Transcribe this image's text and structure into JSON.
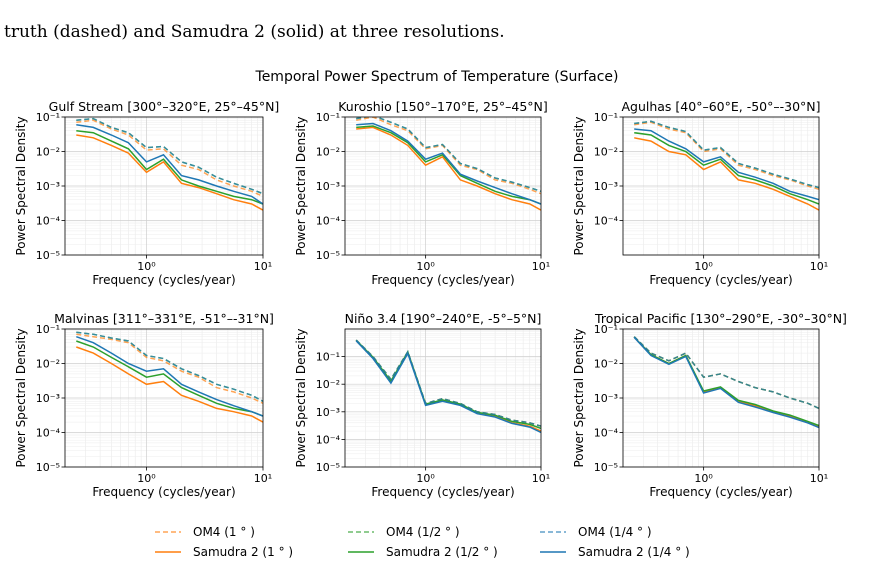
{
  "caption_text": "truth (dashed) and Samudra 2 (solid) at three resolutions.",
  "suptitle": "Temporal Power Spectrum of Temperature (Surface)",
  "xlabel": "Frequency (cycles/year)",
  "ylabel": "Power Spectral Density",
  "colors": {
    "1deg": "#ff7f0e",
    "half": "#2ca02c",
    "quarter": "#1f77b4"
  },
  "legend": [
    {
      "key": "om4_1",
      "label": "OM4 (1$^\\circ$)",
      "text": "OM4 (1 ° )",
      "color": "#ff7f0e",
      "dash": true
    },
    {
      "key": "sam_1",
      "text": "Samudra 2 (1 ° )",
      "color": "#ff7f0e",
      "dash": false
    },
    {
      "key": "om4_half",
      "text": "OM4 (1/2 ° )",
      "color": "#2ca02c",
      "dash": true
    },
    {
      "key": "sam_half",
      "text": "Samudra 2 (1/2 ° )",
      "color": "#2ca02c",
      "dash": false
    },
    {
      "key": "om4_quarter",
      "text": "OM4 (1/4 ° )",
      "color": "#1f77b4",
      "dash": true
    },
    {
      "key": "sam_quarter",
      "text": "Samudra 2 (1/4 ° )",
      "color": "#1f77b4",
      "dash": false
    }
  ],
  "chart_data": [
    {
      "type": "line",
      "title": "Gulf Stream [300°–320°E, 25°–45°N]",
      "xscale": "log",
      "yscale": "log",
      "xlim": [
        0.2,
        10
      ],
      "ylim": [
        1e-05,
        0.1
      ],
      "y_ticks": [
        "10⁻⁵",
        "10⁻⁴",
        "10⁻³",
        "10⁻²",
        "10⁻¹"
      ],
      "x_ticks": [
        "10⁰",
        "10¹"
      ],
      "x": [
        0.25,
        0.35,
        0.5,
        0.7,
        1.0,
        1.4,
        2.0,
        2.8,
        4.0,
        5.6,
        8.0,
        10.0
      ],
      "series": [
        {
          "name": "OM4 (1°)",
          "values": [
            0.07,
            0.08,
            0.045,
            0.03,
            0.011,
            0.012,
            0.004,
            0.003,
            0.0015,
            0.001,
            0.0007,
            0.0005
          ]
        },
        {
          "name": "Samudra 2 (1°)",
          "values": [
            0.03,
            0.025,
            0.015,
            0.009,
            0.0025,
            0.005,
            0.0012,
            0.0009,
            0.0006,
            0.0004,
            0.0003,
            0.0002
          ]
        },
        {
          "name": "OM4 (1/2°)",
          "values": [
            0.08,
            0.09,
            0.05,
            0.035,
            0.013,
            0.014,
            0.005,
            0.0035,
            0.0018,
            0.0012,
            0.0008,
            0.0006
          ]
        },
        {
          "name": "Samudra 2 (1/2°)",
          "values": [
            0.04,
            0.035,
            0.02,
            0.012,
            0.003,
            0.006,
            0.0015,
            0.001,
            0.0007,
            0.0005,
            0.0004,
            0.0003
          ]
        },
        {
          "name": "OM4 (1/4°)",
          "values": [
            0.08,
            0.09,
            0.05,
            0.035,
            0.013,
            0.014,
            0.005,
            0.0035,
            0.0018,
            0.0012,
            0.0008,
            0.0006
          ]
        },
        {
          "name": "Samudra 2 (1/4°)",
          "values": [
            0.06,
            0.05,
            0.03,
            0.018,
            0.005,
            0.008,
            0.002,
            0.0015,
            0.001,
            0.0007,
            0.0005,
            0.0003
          ]
        }
      ]
    },
    {
      "type": "line",
      "title": "Kuroshio [150°–170°E, 25°–45°N]",
      "xscale": "log",
      "yscale": "log",
      "xlim": [
        0.2,
        10
      ],
      "ylim": [
        1e-05,
        0.1
      ],
      "y_ticks": [
        "10⁻⁵",
        "10⁻⁴",
        "10⁻³",
        "10⁻²",
        "10⁻¹"
      ],
      "x_ticks": [
        "10⁰",
        "10¹"
      ],
      "x": [
        0.25,
        0.35,
        0.5,
        0.7,
        1.0,
        1.4,
        2.0,
        2.8,
        4.0,
        5.6,
        8.0,
        10.0
      ],
      "series": [
        {
          "name": "OM4 (1°)",
          "values": [
            0.08,
            0.1,
            0.06,
            0.04,
            0.012,
            0.015,
            0.004,
            0.003,
            0.0015,
            0.0012,
            0.0008,
            0.0006
          ]
        },
        {
          "name": "Samudra 2 (1°)",
          "values": [
            0.045,
            0.05,
            0.03,
            0.015,
            0.004,
            0.007,
            0.0015,
            0.001,
            0.0006,
            0.0004,
            0.0003,
            0.0002
          ]
        },
        {
          "name": "OM4 (1/2°)",
          "values": [
            0.09,
            0.11,
            0.07,
            0.045,
            0.013,
            0.016,
            0.0045,
            0.0032,
            0.0017,
            0.0013,
            0.0009,
            0.0007
          ]
        },
        {
          "name": "Samudra 2 (1/2°)",
          "values": [
            0.05,
            0.055,
            0.035,
            0.018,
            0.005,
            0.008,
            0.002,
            0.0012,
            0.0007,
            0.0005,
            0.0004,
            0.0003
          ]
        },
        {
          "name": "OM4 (1/4°)",
          "values": [
            0.09,
            0.11,
            0.07,
            0.045,
            0.013,
            0.016,
            0.0045,
            0.0032,
            0.0017,
            0.0013,
            0.0009,
            0.0007
          ]
        },
        {
          "name": "Samudra 2 (1/4°)",
          "values": [
            0.06,
            0.065,
            0.04,
            0.02,
            0.006,
            0.009,
            0.0022,
            0.0014,
            0.0009,
            0.0006,
            0.0004,
            0.0003
          ]
        }
      ]
    },
    {
      "type": "line",
      "title": "Agulhas [40°–60°E, -50°–-30°N]",
      "xscale": "log",
      "yscale": "log",
      "xlim": [
        0.2,
        10
      ],
      "ylim": [
        1e-05,
        0.1
      ],
      "y_ticks": [
        "10⁻⁴",
        "10⁻³",
        "10⁻²",
        "10⁻¹"
      ],
      "x_ticks": [
        "10⁰",
        "10¹"
      ],
      "x": [
        0.25,
        0.35,
        0.5,
        0.7,
        1.0,
        1.4,
        2.0,
        2.8,
        4.0,
        5.6,
        8.0,
        10.0
      ],
      "series": [
        {
          "name": "OM4 (1°)",
          "values": [
            0.06,
            0.07,
            0.045,
            0.035,
            0.01,
            0.012,
            0.004,
            0.003,
            0.002,
            0.0015,
            0.001,
            0.0008
          ]
        },
        {
          "name": "Samudra 2 (1°)",
          "values": [
            0.025,
            0.02,
            0.01,
            0.008,
            0.003,
            0.005,
            0.0015,
            0.0012,
            0.0008,
            0.0005,
            0.0003,
            0.0002
          ]
        },
        {
          "name": "OM4 (1/2°)",
          "values": [
            0.065,
            0.075,
            0.05,
            0.038,
            0.011,
            0.013,
            0.0045,
            0.0033,
            0.0022,
            0.0016,
            0.0011,
            0.0009
          ]
        },
        {
          "name": "Samudra 2 (1/2°)",
          "values": [
            0.035,
            0.03,
            0.015,
            0.01,
            0.004,
            0.006,
            0.002,
            0.0015,
            0.001,
            0.0006,
            0.0004,
            0.0003
          ]
        },
        {
          "name": "OM4 (1/4°)",
          "values": [
            0.065,
            0.075,
            0.05,
            0.038,
            0.011,
            0.013,
            0.0045,
            0.0033,
            0.0022,
            0.0016,
            0.0011,
            0.0009
          ]
        },
        {
          "name": "Samudra 2 (1/4°)",
          "values": [
            0.045,
            0.04,
            0.02,
            0.012,
            0.005,
            0.007,
            0.0025,
            0.0018,
            0.0012,
            0.0007,
            0.0005,
            0.0004
          ]
        }
      ]
    },
    {
      "type": "line",
      "title": "Malvinas [311°–331°E, -51°–-31°N]",
      "xscale": "log",
      "yscale": "log",
      "xlim": [
        0.2,
        10
      ],
      "ylim": [
        1e-05,
        0.1
      ],
      "y_ticks": [
        "10⁻⁵",
        "10⁻⁴",
        "10⁻³",
        "10⁻²",
        "10⁻¹"
      ],
      "x_ticks": [
        "10⁰",
        "10¹"
      ],
      "x": [
        0.25,
        0.35,
        0.5,
        0.7,
        1.0,
        1.4,
        2.0,
        2.8,
        4.0,
        5.6,
        8.0,
        10.0
      ],
      "series": [
        {
          "name": "OM4 (1°)",
          "values": [
            0.07,
            0.06,
            0.05,
            0.04,
            0.015,
            0.012,
            0.006,
            0.004,
            0.002,
            0.0015,
            0.001,
            0.0007
          ]
        },
        {
          "name": "Samudra 2 (1°)",
          "values": [
            0.03,
            0.02,
            0.01,
            0.005,
            0.0025,
            0.003,
            0.0012,
            0.0008,
            0.0005,
            0.0004,
            0.0003,
            0.0002
          ]
        },
        {
          "name": "OM4 (1/2°)",
          "values": [
            0.08,
            0.07,
            0.055,
            0.045,
            0.017,
            0.014,
            0.007,
            0.0045,
            0.0025,
            0.0018,
            0.0012,
            0.0008
          ]
        },
        {
          "name": "Samudra 2 (1/2°)",
          "values": [
            0.045,
            0.03,
            0.015,
            0.008,
            0.004,
            0.005,
            0.002,
            0.0012,
            0.0007,
            0.0005,
            0.0004,
            0.0003
          ]
        },
        {
          "name": "OM4 (1/4°)",
          "values": [
            0.08,
            0.07,
            0.055,
            0.045,
            0.017,
            0.014,
            0.007,
            0.0045,
            0.0025,
            0.0018,
            0.0012,
            0.0008
          ]
        },
        {
          "name": "Samudra 2 (1/4°)",
          "values": [
            0.06,
            0.04,
            0.02,
            0.01,
            0.006,
            0.007,
            0.0025,
            0.0015,
            0.0009,
            0.0006,
            0.0004,
            0.0003
          ]
        }
      ]
    },
    {
      "type": "line",
      "title": "Niño 3.4 [190°–240°E, -5°–5°N]",
      "xscale": "log",
      "yscale": "log",
      "xlim": [
        0.2,
        10
      ],
      "ylim": [
        1e-05,
        1.0
      ],
      "y_ticks": [
        "10⁻⁵",
        "10⁻⁴",
        "10⁻³",
        "10⁻²",
        "10⁻¹"
      ],
      "x_ticks": [
        "10⁰",
        "10¹"
      ],
      "x": [
        0.25,
        0.35,
        0.5,
        0.7,
        1.0,
        1.4,
        2.0,
        2.8,
        4.0,
        5.6,
        8.0,
        10.0
      ],
      "series": [
        {
          "name": "OM4 (1°)",
          "values": [
            0.4,
            0.1,
            0.015,
            0.15,
            0.002,
            0.003,
            0.002,
            0.001,
            0.0008,
            0.0005,
            0.0004,
            0.0003
          ]
        },
        {
          "name": "Samudra 2 (1°)",
          "values": [
            0.38,
            0.09,
            0.012,
            0.14,
            0.0018,
            0.0025,
            0.0018,
            0.0009,
            0.0007,
            0.0004,
            0.0003,
            0.0002
          ]
        },
        {
          "name": "OM4 (1/2°)",
          "values": [
            0.4,
            0.1,
            0.015,
            0.15,
            0.002,
            0.003,
            0.002,
            0.001,
            0.0008,
            0.0005,
            0.0004,
            0.0003
          ]
        },
        {
          "name": "Samudra 2 (1/2°)",
          "values": [
            0.39,
            0.095,
            0.013,
            0.145,
            0.0019,
            0.0027,
            0.0019,
            0.00095,
            0.00075,
            0.00045,
            0.00035,
            0.00025
          ]
        },
        {
          "name": "OM4 (1/4°)",
          "values": [
            0.4,
            0.1,
            0.015,
            0.15,
            0.002,
            0.003,
            0.002,
            0.001,
            0.0008,
            0.0005,
            0.0004,
            0.0003
          ]
        },
        {
          "name": "Samudra 2 (1/4°)",
          "values": [
            0.37,
            0.085,
            0.011,
            0.13,
            0.0017,
            0.0024,
            0.0017,
            0.00085,
            0.00065,
            0.00038,
            0.00028,
            0.00018
          ]
        }
      ]
    },
    {
      "type": "line",
      "title": "Tropical Pacific [130°–290°E, -30°–30°N]",
      "xscale": "log",
      "yscale": "log",
      "xlim": [
        0.2,
        10
      ],
      "ylim": [
        1e-05,
        0.1
      ],
      "y_ticks": [
        "10⁻⁵",
        "10⁻⁴",
        "10⁻³",
        "10⁻²",
        "10⁻¹"
      ],
      "x_ticks": [
        "10⁰",
        "10¹"
      ],
      "x": [
        0.25,
        0.35,
        0.5,
        0.7,
        1.0,
        1.4,
        2.0,
        2.8,
        4.0,
        5.6,
        8.0,
        10.0
      ],
      "series": [
        {
          "name": "OM4 (1°)",
          "values": [
            0.06,
            0.02,
            0.012,
            0.02,
            0.004,
            0.005,
            0.003,
            0.002,
            0.0015,
            0.001,
            0.0007,
            0.0005
          ]
        },
        {
          "name": "Samudra 2 (1°)",
          "values": [
            0.058,
            0.018,
            0.01,
            0.017,
            0.0015,
            0.002,
            0.0008,
            0.0006,
            0.0004,
            0.0003,
            0.0002,
            0.00015
          ]
        },
        {
          "name": "OM4 (1/2°)",
          "values": [
            0.06,
            0.02,
            0.012,
            0.02,
            0.004,
            0.005,
            0.003,
            0.002,
            0.0015,
            0.001,
            0.0007,
            0.0005
          ]
        },
        {
          "name": "Samudra 2 (1/2°)",
          "values": [
            0.058,
            0.018,
            0.01,
            0.017,
            0.0016,
            0.0021,
            0.00085,
            0.00065,
            0.00042,
            0.00032,
            0.00021,
            0.00016
          ]
        },
        {
          "name": "OM4 (1/4°)",
          "values": [
            0.06,
            0.02,
            0.012,
            0.02,
            0.004,
            0.005,
            0.003,
            0.002,
            0.0015,
            0.001,
            0.0007,
            0.0005
          ]
        },
        {
          "name": "Samudra 2 (1/4°)",
          "values": [
            0.057,
            0.017,
            0.0095,
            0.016,
            0.0014,
            0.0019,
            0.00075,
            0.00055,
            0.00038,
            0.00028,
            0.00019,
            0.00014
          ]
        }
      ]
    }
  ]
}
